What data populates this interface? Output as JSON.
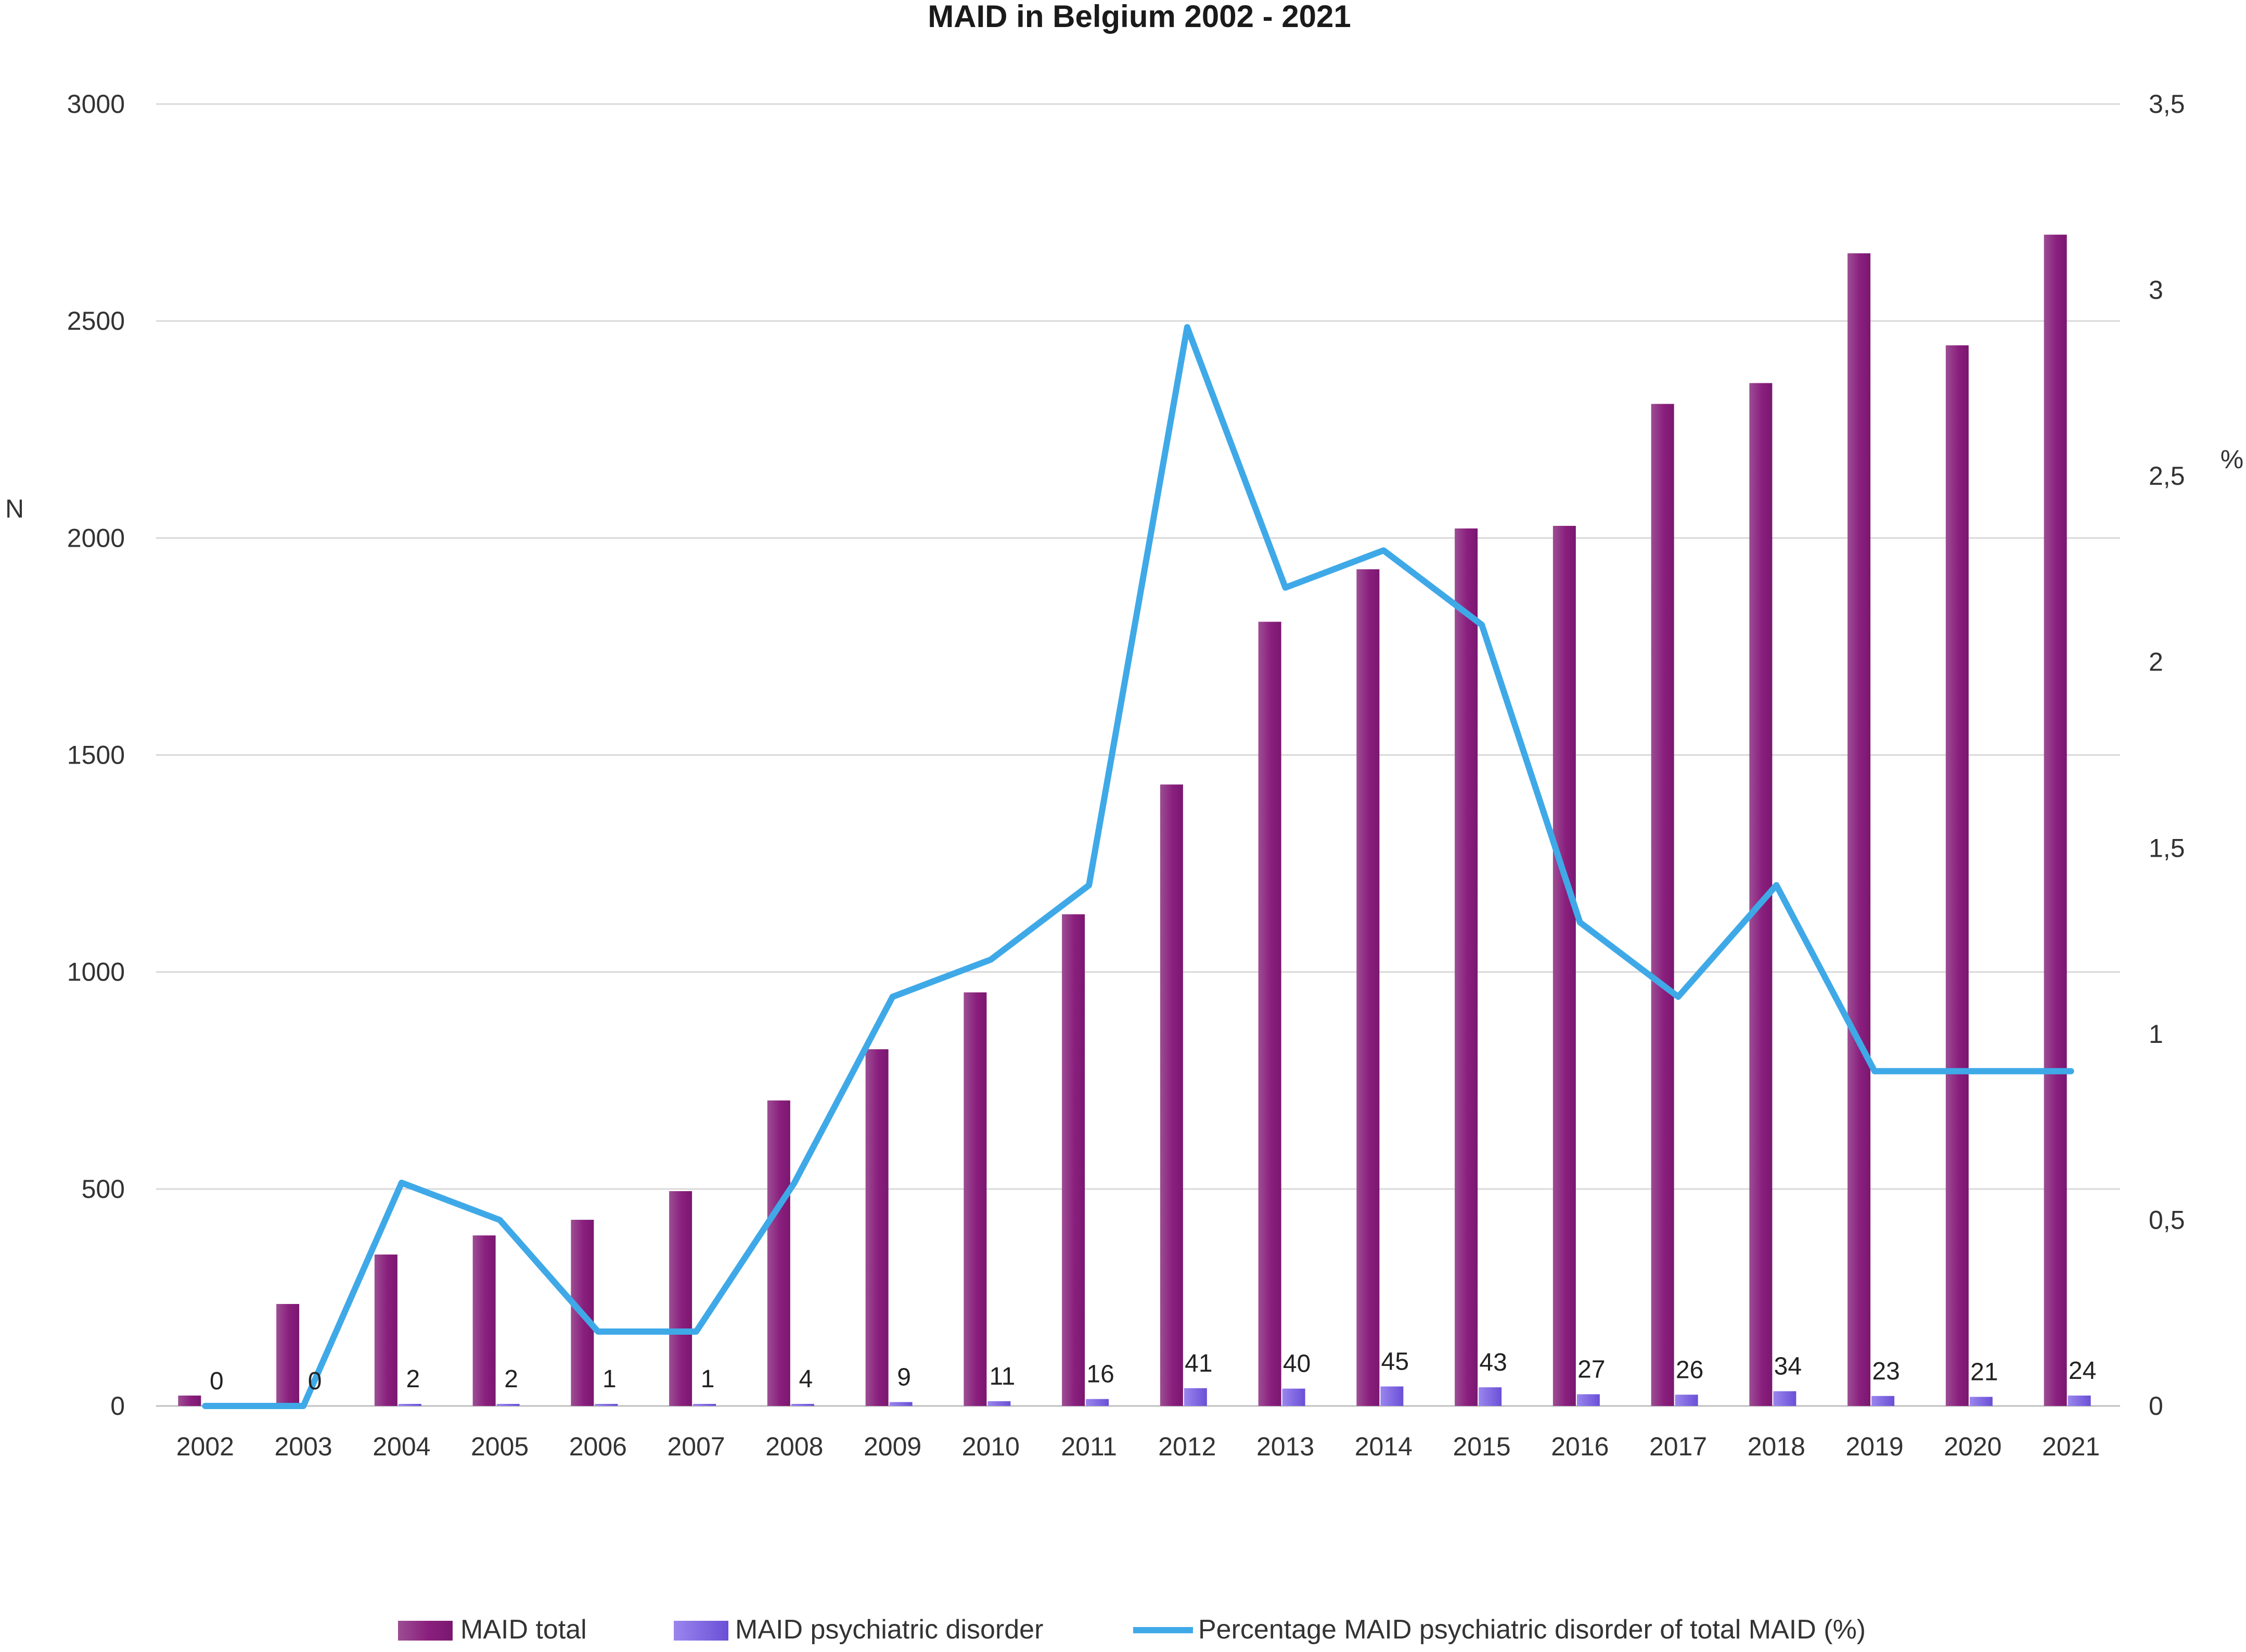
{
  "chart_data": {
    "type": "bar",
    "title": "MAID in Belgium 2002 - 2021",
    "xlabel": "",
    "ylabel": "N",
    "y2label": "%",
    "categories": [
      "2002",
      "2003",
      "2004",
      "2005",
      "2006",
      "2007",
      "2008",
      "2009",
      "2010",
      "2011",
      "2012",
      "2013",
      "2014",
      "2015",
      "2016",
      "2017",
      "2018",
      "2019",
      "2020",
      "2021"
    ],
    "ylim": [
      0,
      3000
    ],
    "yticks": [
      0,
      500,
      1000,
      1500,
      2000,
      2500,
      3000
    ],
    "y2lim": [
      0,
      3.5
    ],
    "y2ticks": [
      "0",
      "0,5",
      "1",
      "1,5",
      "2",
      "2,5",
      "3",
      "3,5"
    ],
    "grid": true,
    "legend_position": "bottom",
    "series": [
      {
        "name": "MAID total",
        "type": "bar",
        "axis": "left",
        "color": "#8e1f7e",
        "values": [
          24,
          235,
          349,
          393,
          429,
          495,
          704,
          822,
          953,
          1133,
          1432,
          1807,
          1928,
          2022,
          2028,
          2309,
          2357,
          2656,
          2444,
          2699
        ]
      },
      {
        "name": "MAID psychiatric disorder",
        "type": "bar",
        "axis": "left",
        "color": "#7b5fe0",
        "values": [
          0,
          0,
          2,
          2,
          1,
          1,
          4,
          9,
          11,
          16,
          41,
          40,
          45,
          43,
          27,
          26,
          34,
          23,
          21,
          24
        ],
        "data_labels": [
          "0",
          "0",
          "2",
          "2",
          "1",
          "1",
          "4",
          "9",
          "11",
          "16",
          "41",
          "40",
          "45",
          "43",
          "27",
          "26",
          "34",
          "23",
          "21",
          "24"
        ]
      },
      {
        "name": "Percentage MAID psychiatric disorder of total MAID (%)",
        "type": "line",
        "axis": "right",
        "color": "#3fa9e8",
        "values": [
          0,
          0,
          0.6,
          0.5,
          0.2,
          0.2,
          0.6,
          1.1,
          1.2,
          1.4,
          2.9,
          2.2,
          2.3,
          2.1,
          1.3,
          1.1,
          1.4,
          0.9,
          0.9,
          0.9
        ]
      }
    ]
  }
}
